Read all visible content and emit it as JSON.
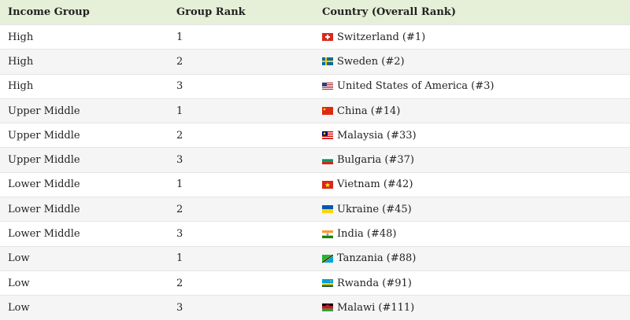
{
  "table": {
    "headers": [
      "Income Group",
      "Group Rank",
      "Country (Overall Rank)"
    ],
    "rows": [
      {
        "income_group": "High",
        "group_rank": "1",
        "country": "Switzerland (#1)",
        "flag_icon": "switzerland-flag-icon"
      },
      {
        "income_group": "High",
        "group_rank": "2",
        "country": "Sweden (#2)",
        "flag_icon": "sweden-flag-icon"
      },
      {
        "income_group": "High",
        "group_rank": "3",
        "country": "United States of America (#3)",
        "flag_icon": "usa-flag-icon"
      },
      {
        "income_group": "Upper Middle",
        "group_rank": "1",
        "country": "China (#14)",
        "flag_icon": "china-flag-icon"
      },
      {
        "income_group": "Upper Middle",
        "group_rank": "2",
        "country": "Malaysia (#33)",
        "flag_icon": "malaysia-flag-icon"
      },
      {
        "income_group": "Upper Middle",
        "group_rank": "3",
        "country": "Bulgaria (#37)",
        "flag_icon": "bulgaria-flag-icon"
      },
      {
        "income_group": "Lower Middle",
        "group_rank": "1",
        "country": "Vietnam (#42)",
        "flag_icon": "vietnam-flag-icon"
      },
      {
        "income_group": "Lower Middle",
        "group_rank": "2",
        "country": "Ukraine (#45)",
        "flag_icon": "ukraine-flag-icon"
      },
      {
        "income_group": "Lower Middle",
        "group_rank": "3",
        "country": "India (#48)",
        "flag_icon": "india-flag-icon"
      },
      {
        "income_group": "Low",
        "group_rank": "1",
        "country": "Tanzania (#88)",
        "flag_icon": "tanzania-flag-icon"
      },
      {
        "income_group": "Low",
        "group_rank": "2",
        "country": "Rwanda (#91)",
        "flag_icon": "rwanda-flag-icon"
      },
      {
        "income_group": "Low",
        "group_rank": "3",
        "country": "Malawi (#111)",
        "flag_icon": "malawi-flag-icon"
      }
    ]
  },
  "colors": {
    "header_bg": "#e6f0d8",
    "alt_row_bg": "#f5f5f5",
    "text": "#222222"
  }
}
